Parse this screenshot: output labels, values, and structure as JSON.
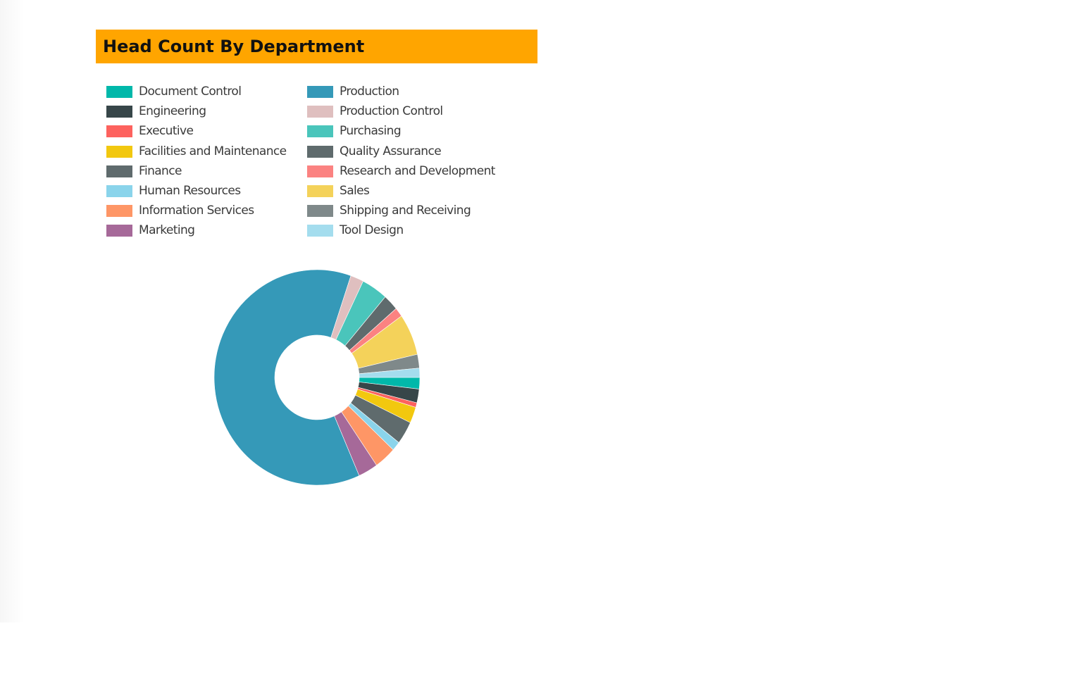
{
  "chart_data": {
    "type": "pie",
    "title": "Head Count By Department",
    "donut": true,
    "legend_position": "top",
    "start_direction": "right, clockwise",
    "categories": [
      "Document Control",
      "Engineering",
      "Executive",
      "Facilities and Maintenance",
      "Finance",
      "Human Resources",
      "Information Services",
      "Marketing",
      "Production",
      "Production Control",
      "Purchasing",
      "Quality Assurance",
      "Research and Development",
      "Sales",
      "Shipping and Receiving",
      "Tool Design"
    ],
    "values": [
      5,
      6,
      2,
      7,
      10,
      4,
      10,
      9,
      180,
      6,
      12,
      7,
      4,
      18,
      6,
      4
    ],
    "colors": [
      "#01B8AA",
      "#374649",
      "#FD625E",
      "#F2C80F",
      "#5F6B6D",
      "#8AD4EB",
      "#FE9666",
      "#A66999",
      "#3599B8",
      "#DFBFBF",
      "#4AC5BB",
      "#5F6B6D",
      "#FB8281",
      "#F4D25A",
      "#7F898A",
      "#A4DDEE"
    ]
  }
}
